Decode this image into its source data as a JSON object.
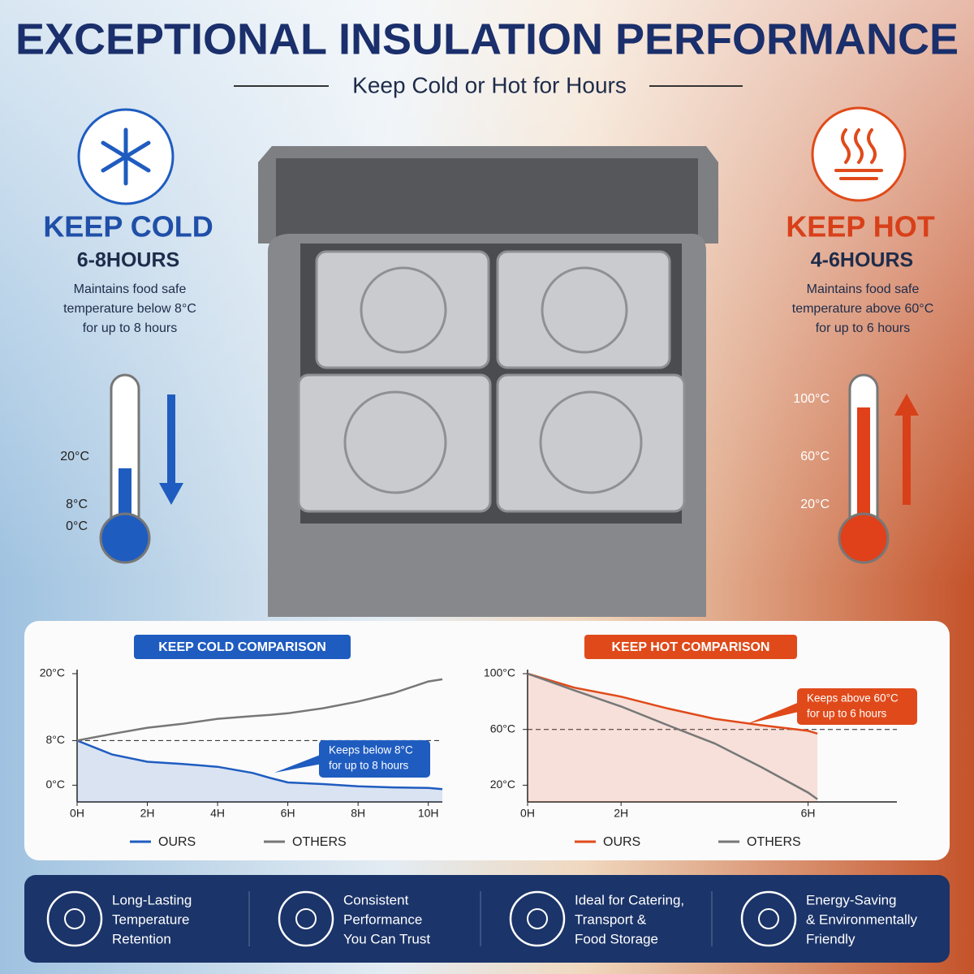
{
  "header": {
    "title": "EXCEPTIONAL INSULATION PERFORMANCE",
    "subtitle": "Keep Cold or Hot for Hours"
  },
  "cold": {
    "title": "KEEP COLD",
    "hours": "6-8HOURS",
    "description": [
      "Maintains food safe",
      "temperature below 8°C",
      "for up to  8  hours"
    ],
    "scale": [
      "20°C",
      "8°C",
      "0°C"
    ]
  },
  "hot": {
    "title": "KEEP HOT",
    "hours": "4-6HOURS",
    "description": [
      "Maintains food safe",
      "temperature above 60°C",
      "for up to 6 hours"
    ],
    "scale": [
      "100°C",
      "60°C",
      "20°C"
    ]
  },
  "chart_data": [
    {
      "type": "line",
      "title": "KEEP COLD COMPARISON",
      "color": "#1f5cc0",
      "x": [
        0,
        1,
        2,
        3,
        4,
        5,
        5.5,
        6,
        7,
        8,
        9,
        10,
        10.4
      ],
      "xlim": [
        0,
        10.4
      ],
      "xticks": [
        {
          "value": 0,
          "label": "0H"
        },
        {
          "value": 2,
          "label": "2H"
        },
        {
          "value": 4,
          "label": "4H"
        },
        {
          "value": 6,
          "label": "6H"
        },
        {
          "value": 8,
          "label": "8H"
        },
        {
          "value": 10,
          "label": "10H"
        }
      ],
      "ylim": [
        -3,
        20
      ],
      "yticks": [
        {
          "value": 20,
          "label": "20°C"
        },
        {
          "value": 8,
          "label": "8°C"
        },
        {
          "value": 0,
          "label": "0°C"
        }
      ],
      "threshold": 8,
      "annotation": [
        "Keeps below 8°C",
        "for up to  8  hours"
      ],
      "series": [
        {
          "name": "OURS",
          "color": "#1f5cc0",
          "values": [
            8,
            5.5,
            4.2,
            3.8,
            3.3,
            2.2,
            1.3,
            0.5,
            0.2,
            -0.2,
            -0.4,
            -0.5,
            -0.7
          ]
        },
        {
          "name": "OTHERS",
          "color": "#777777",
          "values": [
            8,
            9.2,
            10.3,
            11,
            11.9,
            12.4,
            12.6,
            12.9,
            13.8,
            15,
            16.5,
            18.6,
            19
          ]
        }
      ]
    },
    {
      "type": "line",
      "title": "KEEP HOT COMPARISON",
      "color": "#e04a1a",
      "x": [
        0,
        1,
        2,
        3,
        4,
        5,
        6,
        6.2
      ],
      "xlim": [
        0,
        7.9
      ],
      "xticks": [
        {
          "value": 0,
          "label": "0H"
        },
        {
          "value": 2,
          "label": "2H"
        },
        {
          "value": 6,
          "label": "6H"
        }
      ],
      "ylim": [
        8,
        100
      ],
      "yticks": [
        {
          "value": 100,
          "label": "100°C"
        },
        {
          "value": 60,
          "label": "60°C"
        },
        {
          "value": 20,
          "label": "20°C"
        }
      ],
      "threshold": 60,
      "annotation": [
        "Keeps above 60°C",
        "for up to 6 hours"
      ],
      "series": [
        {
          "name": "OURS",
          "color": "#e04a1a",
          "values": [
            100,
            90,
            83.5,
            75,
            67.6,
            63,
            59,
            57
          ]
        },
        {
          "name": "OTHERS",
          "color": "#777777",
          "values": [
            100,
            88,
            76.5,
            63,
            50,
            33,
            14.7,
            10
          ]
        }
      ]
    }
  ],
  "features": [
    {
      "lines": [
        "Long-Lasting",
        "Temperature",
        "Retention"
      ]
    },
    {
      "lines": [
        "Consistent",
        "Performance",
        "You Can Trust"
      ]
    },
    {
      "lines": [
        "Ideal for Catering,",
        "Transport &",
        "Food Storage"
      ]
    },
    {
      "lines": [
        "Energy-Saving",
        "& Environmentally",
        "Friendly"
      ]
    }
  ]
}
